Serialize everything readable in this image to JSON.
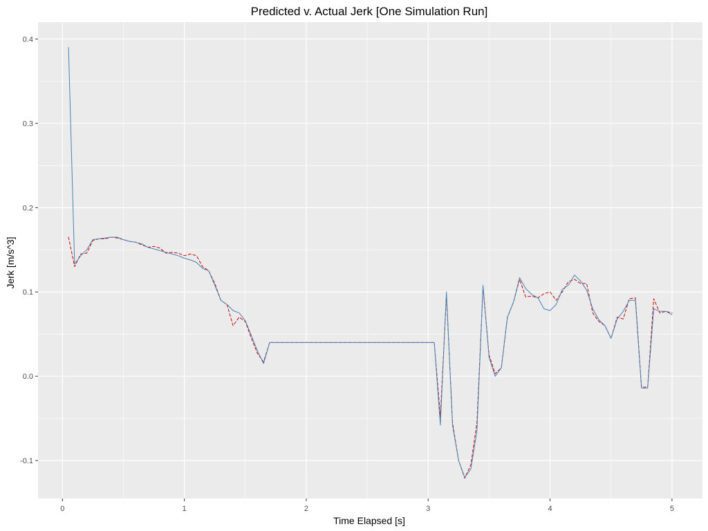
{
  "chart_data": {
    "type": "line",
    "title": "Predicted v. Actual Jerk [One Simulation Run]",
    "xlabel": "Time Elapsed [s]",
    "ylabel": "Jerk [m/s^3]",
    "xlim": [
      -0.2,
      5.25
    ],
    "ylim": [
      -0.145,
      0.42
    ],
    "xticks": [
      0,
      1,
      2,
      3,
      4,
      5
    ],
    "xtick_labels": [
      "0",
      "1",
      "2",
      "3",
      "4",
      "5"
    ],
    "yticks": [
      -0.1,
      0.0,
      0.1,
      0.2,
      0.3,
      0.4
    ],
    "ytick_labels": [
      "-0.1",
      "0.0",
      "0.1",
      "0.2",
      "0.3",
      "0.4"
    ],
    "grid": true,
    "background": "#ebebeb",
    "grid_color": "#ffffff",
    "legend": "none",
    "series": [
      {
        "color": "#cc0000",
        "style": "dashed",
        "x": [
          0.05,
          0.1,
          0.15,
          0.2,
          0.25,
          0.3,
          0.35,
          0.4,
          0.45,
          0.5,
          0.55,
          0.6,
          0.65,
          0.7,
          0.75,
          0.8,
          0.85,
          0.9,
          0.95,
          1.0,
          1.05,
          1.1,
          1.15,
          1.2,
          1.25,
          1.3,
          1.35,
          1.4,
          1.45,
          1.5,
          1.55,
          1.6,
          1.65,
          1.7,
          1.75,
          2.0,
          2.5,
          3.0,
          3.05,
          3.1,
          3.15,
          3.2,
          3.25,
          3.3,
          3.35,
          3.4,
          3.45,
          3.5,
          3.55,
          3.6,
          3.65,
          3.7,
          3.75,
          3.8,
          3.85,
          3.9,
          3.95,
          4.0,
          4.05,
          4.1,
          4.15,
          4.2,
          4.25,
          4.3,
          4.35,
          4.4,
          4.45,
          4.5,
          4.55,
          4.6,
          4.65,
          4.7,
          4.75,
          4.8,
          4.85,
          4.9,
          4.95,
          5.0
        ],
        "y": [
          0.165,
          0.13,
          0.145,
          0.146,
          0.161,
          0.163,
          0.163,
          0.165,
          0.164,
          0.162,
          0.16,
          0.159,
          0.156,
          0.153,
          0.154,
          0.152,
          0.146,
          0.147,
          0.146,
          0.143,
          0.145,
          0.143,
          0.13,
          0.125,
          0.11,
          0.09,
          0.085,
          0.06,
          0.07,
          0.065,
          0.045,
          0.027,
          0.017,
          0.04,
          0.04,
          0.04,
          0.04,
          0.04,
          0.04,
          -0.048,
          0.096,
          -0.055,
          -0.1,
          -0.121,
          -0.105,
          -0.055,
          0.105,
          0.025,
          0.003,
          0.01,
          0.07,
          0.088,
          0.115,
          0.094,
          0.095,
          0.093,
          0.098,
          0.1,
          0.09,
          0.1,
          0.112,
          0.115,
          0.11,
          0.11,
          0.075,
          0.065,
          0.06,
          0.045,
          0.07,
          0.068,
          0.092,
          0.093,
          -0.013,
          -0.013,
          0.092,
          0.075,
          0.077,
          0.075
        ]
      },
      {
        "color": "#4682b4",
        "style": "solid",
        "x": [
          0.05,
          0.1,
          0.15,
          0.2,
          0.25,
          0.3,
          0.35,
          0.4,
          0.45,
          0.5,
          0.55,
          0.6,
          0.65,
          0.7,
          0.75,
          0.8,
          0.85,
          0.9,
          0.95,
          1.0,
          1.05,
          1.1,
          1.15,
          1.2,
          1.25,
          1.3,
          1.35,
          1.4,
          1.45,
          1.5,
          1.55,
          1.6,
          1.65,
          1.7,
          1.75,
          2.0,
          2.5,
          3.0,
          3.05,
          3.1,
          3.15,
          3.2,
          3.25,
          3.3,
          3.35,
          3.4,
          3.45,
          3.5,
          3.55,
          3.6,
          3.65,
          3.7,
          3.75,
          3.8,
          3.85,
          3.9,
          3.95,
          4.0,
          4.05,
          4.1,
          4.15,
          4.2,
          4.25,
          4.3,
          4.35,
          4.4,
          4.45,
          4.5,
          4.55,
          4.6,
          4.65,
          4.7,
          4.75,
          4.8,
          4.85,
          4.9,
          4.95,
          5.0
        ],
        "y": [
          0.39,
          0.133,
          0.143,
          0.15,
          0.162,
          0.163,
          0.164,
          0.165,
          0.165,
          0.162,
          0.16,
          0.159,
          0.157,
          0.153,
          0.151,
          0.149,
          0.147,
          0.145,
          0.143,
          0.14,
          0.138,
          0.135,
          0.128,
          0.125,
          0.108,
          0.09,
          0.085,
          0.078,
          0.075,
          0.066,
          0.048,
          0.03,
          0.015,
          0.04,
          0.04,
          0.04,
          0.04,
          0.04,
          0.04,
          -0.058,
          0.1,
          -0.058,
          -0.1,
          -0.12,
          -0.11,
          -0.065,
          0.108,
          0.022,
          0.0,
          0.01,
          0.07,
          0.088,
          0.117,
          0.104,
          0.097,
          0.093,
          0.08,
          0.078,
          0.085,
          0.103,
          0.108,
          0.12,
          0.113,
          0.102,
          0.08,
          0.067,
          0.06,
          0.045,
          0.068,
          0.077,
          0.09,
          0.09,
          -0.014,
          -0.014,
          0.08,
          0.077,
          0.077,
          0.073
        ]
      }
    ]
  }
}
